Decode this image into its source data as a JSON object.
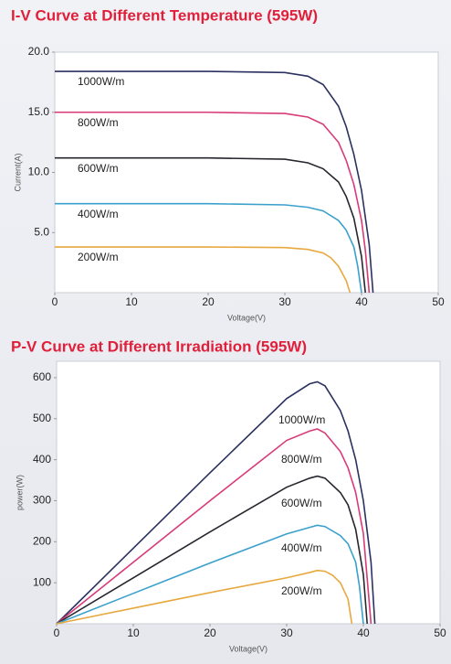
{
  "chart_data": [
    {
      "type": "line",
      "title": "I-V Curve at Different Temperature (595W)",
      "xlabel": "Voltage(V)",
      "ylabel": "Current(A)",
      "xlim": [
        0,
        50
      ],
      "xticks": [
        0,
        10,
        20,
        30,
        40,
        50
      ],
      "ylim": [
        0,
        20
      ],
      "yticks": [
        {
          "value": 5,
          "label": "5.0"
        },
        {
          "value": 10,
          "label": "10.0"
        },
        {
          "value": 15,
          "label": "15.0"
        },
        {
          "value": 20,
          "label": "20.0"
        }
      ],
      "series": [
        {
          "name": "1000W/m",
          "color": "#2b3160",
          "x": [
            0,
            10,
            20,
            30,
            33,
            35,
            37,
            38,
            39,
            40,
            41,
            41.5
          ],
          "values": [
            18.4,
            18.4,
            18.4,
            18.3,
            18,
            17.3,
            15.5,
            13.8,
            11.5,
            8.5,
            4,
            0
          ]
        },
        {
          "name": "800W/m",
          "color": "#d93a78",
          "x": [
            0,
            10,
            20,
            30,
            33,
            35,
            37,
            38,
            39,
            40,
            40.5,
            41
          ],
          "values": [
            15,
            15,
            15,
            14.9,
            14.6,
            14,
            12.5,
            11,
            9,
            6,
            3.5,
            0
          ]
        },
        {
          "name": "600W/m",
          "color": "#26262f",
          "x": [
            0,
            10,
            20,
            30,
            33,
            35,
            37,
            38,
            39,
            40,
            40.5
          ],
          "values": [
            11.2,
            11.2,
            11.2,
            11.1,
            10.8,
            10.3,
            9.2,
            8,
            6.2,
            3,
            0
          ]
        },
        {
          "name": "400W/m",
          "color": "#3aa0cc",
          "x": [
            0,
            10,
            20,
            30,
            33,
            35,
            37,
            38,
            39,
            39.5,
            40
          ],
          "values": [
            7.4,
            7.4,
            7.4,
            7.3,
            7.1,
            6.8,
            6,
            5.2,
            3.8,
            2.2,
            0
          ]
        },
        {
          "name": "200W/m",
          "color": "#e8a83e",
          "x": [
            0,
            10,
            20,
            30,
            33,
            35,
            36,
            37,
            38,
            38.5
          ],
          "values": [
            3.8,
            3.8,
            3.8,
            3.75,
            3.6,
            3.3,
            2.9,
            2.2,
            1,
            0
          ]
        }
      ]
    },
    {
      "type": "line",
      "title": "P-V Curve at Different Irradiation (595W)",
      "xlabel": "Voltage(V)",
      "ylabel": "power(W)",
      "xlim": [
        0,
        50
      ],
      "xticks": [
        0,
        10,
        20,
        30,
        40,
        50
      ],
      "ylim": [
        0,
        640
      ],
      "yticks": [
        100,
        200,
        300,
        400,
        500,
        600
      ],
      "series": [
        {
          "name": "1000W/m",
          "color": "#2b3160",
          "x": [
            0,
            10,
            20,
            30,
            33,
            34,
            35,
            37,
            38,
            39,
            40,
            41,
            41.5
          ],
          "values": [
            0,
            184,
            368,
            549,
            585,
            590,
            580,
            520,
            470,
            400,
            300,
            150,
            0
          ]
        },
        {
          "name": "800W/m",
          "color": "#d93a78",
          "x": [
            0,
            10,
            20,
            30,
            33,
            34,
            35,
            37,
            38,
            39,
            40,
            40.5,
            41
          ],
          "values": [
            0,
            150,
            300,
            447,
            470,
            475,
            465,
            420,
            380,
            320,
            220,
            110,
            0
          ]
        },
        {
          "name": "600W/m",
          "color": "#26262f",
          "x": [
            0,
            10,
            20,
            30,
            33,
            34,
            35,
            37,
            38,
            39,
            40,
            40.5
          ],
          "values": [
            0,
            112,
            224,
            333,
            355,
            360,
            355,
            320,
            290,
            230,
            120,
            0
          ]
        },
        {
          "name": "400W/m",
          "color": "#3aa0cc",
          "x": [
            0,
            10,
            20,
            30,
            33,
            34,
            35,
            37,
            38,
            39,
            39.5,
            40
          ],
          "values": [
            0,
            74,
            148,
            219,
            235,
            240,
            237,
            215,
            195,
            150,
            90,
            0
          ]
        },
        {
          "name": "200W/m",
          "color": "#e8a83e",
          "x": [
            0,
            10,
            20,
            30,
            33,
            34,
            35,
            36,
            37,
            38,
            38.5
          ],
          "values": [
            0,
            38,
            76,
            112,
            125,
            130,
            128,
            118,
            100,
            60,
            0
          ]
        }
      ]
    }
  ]
}
